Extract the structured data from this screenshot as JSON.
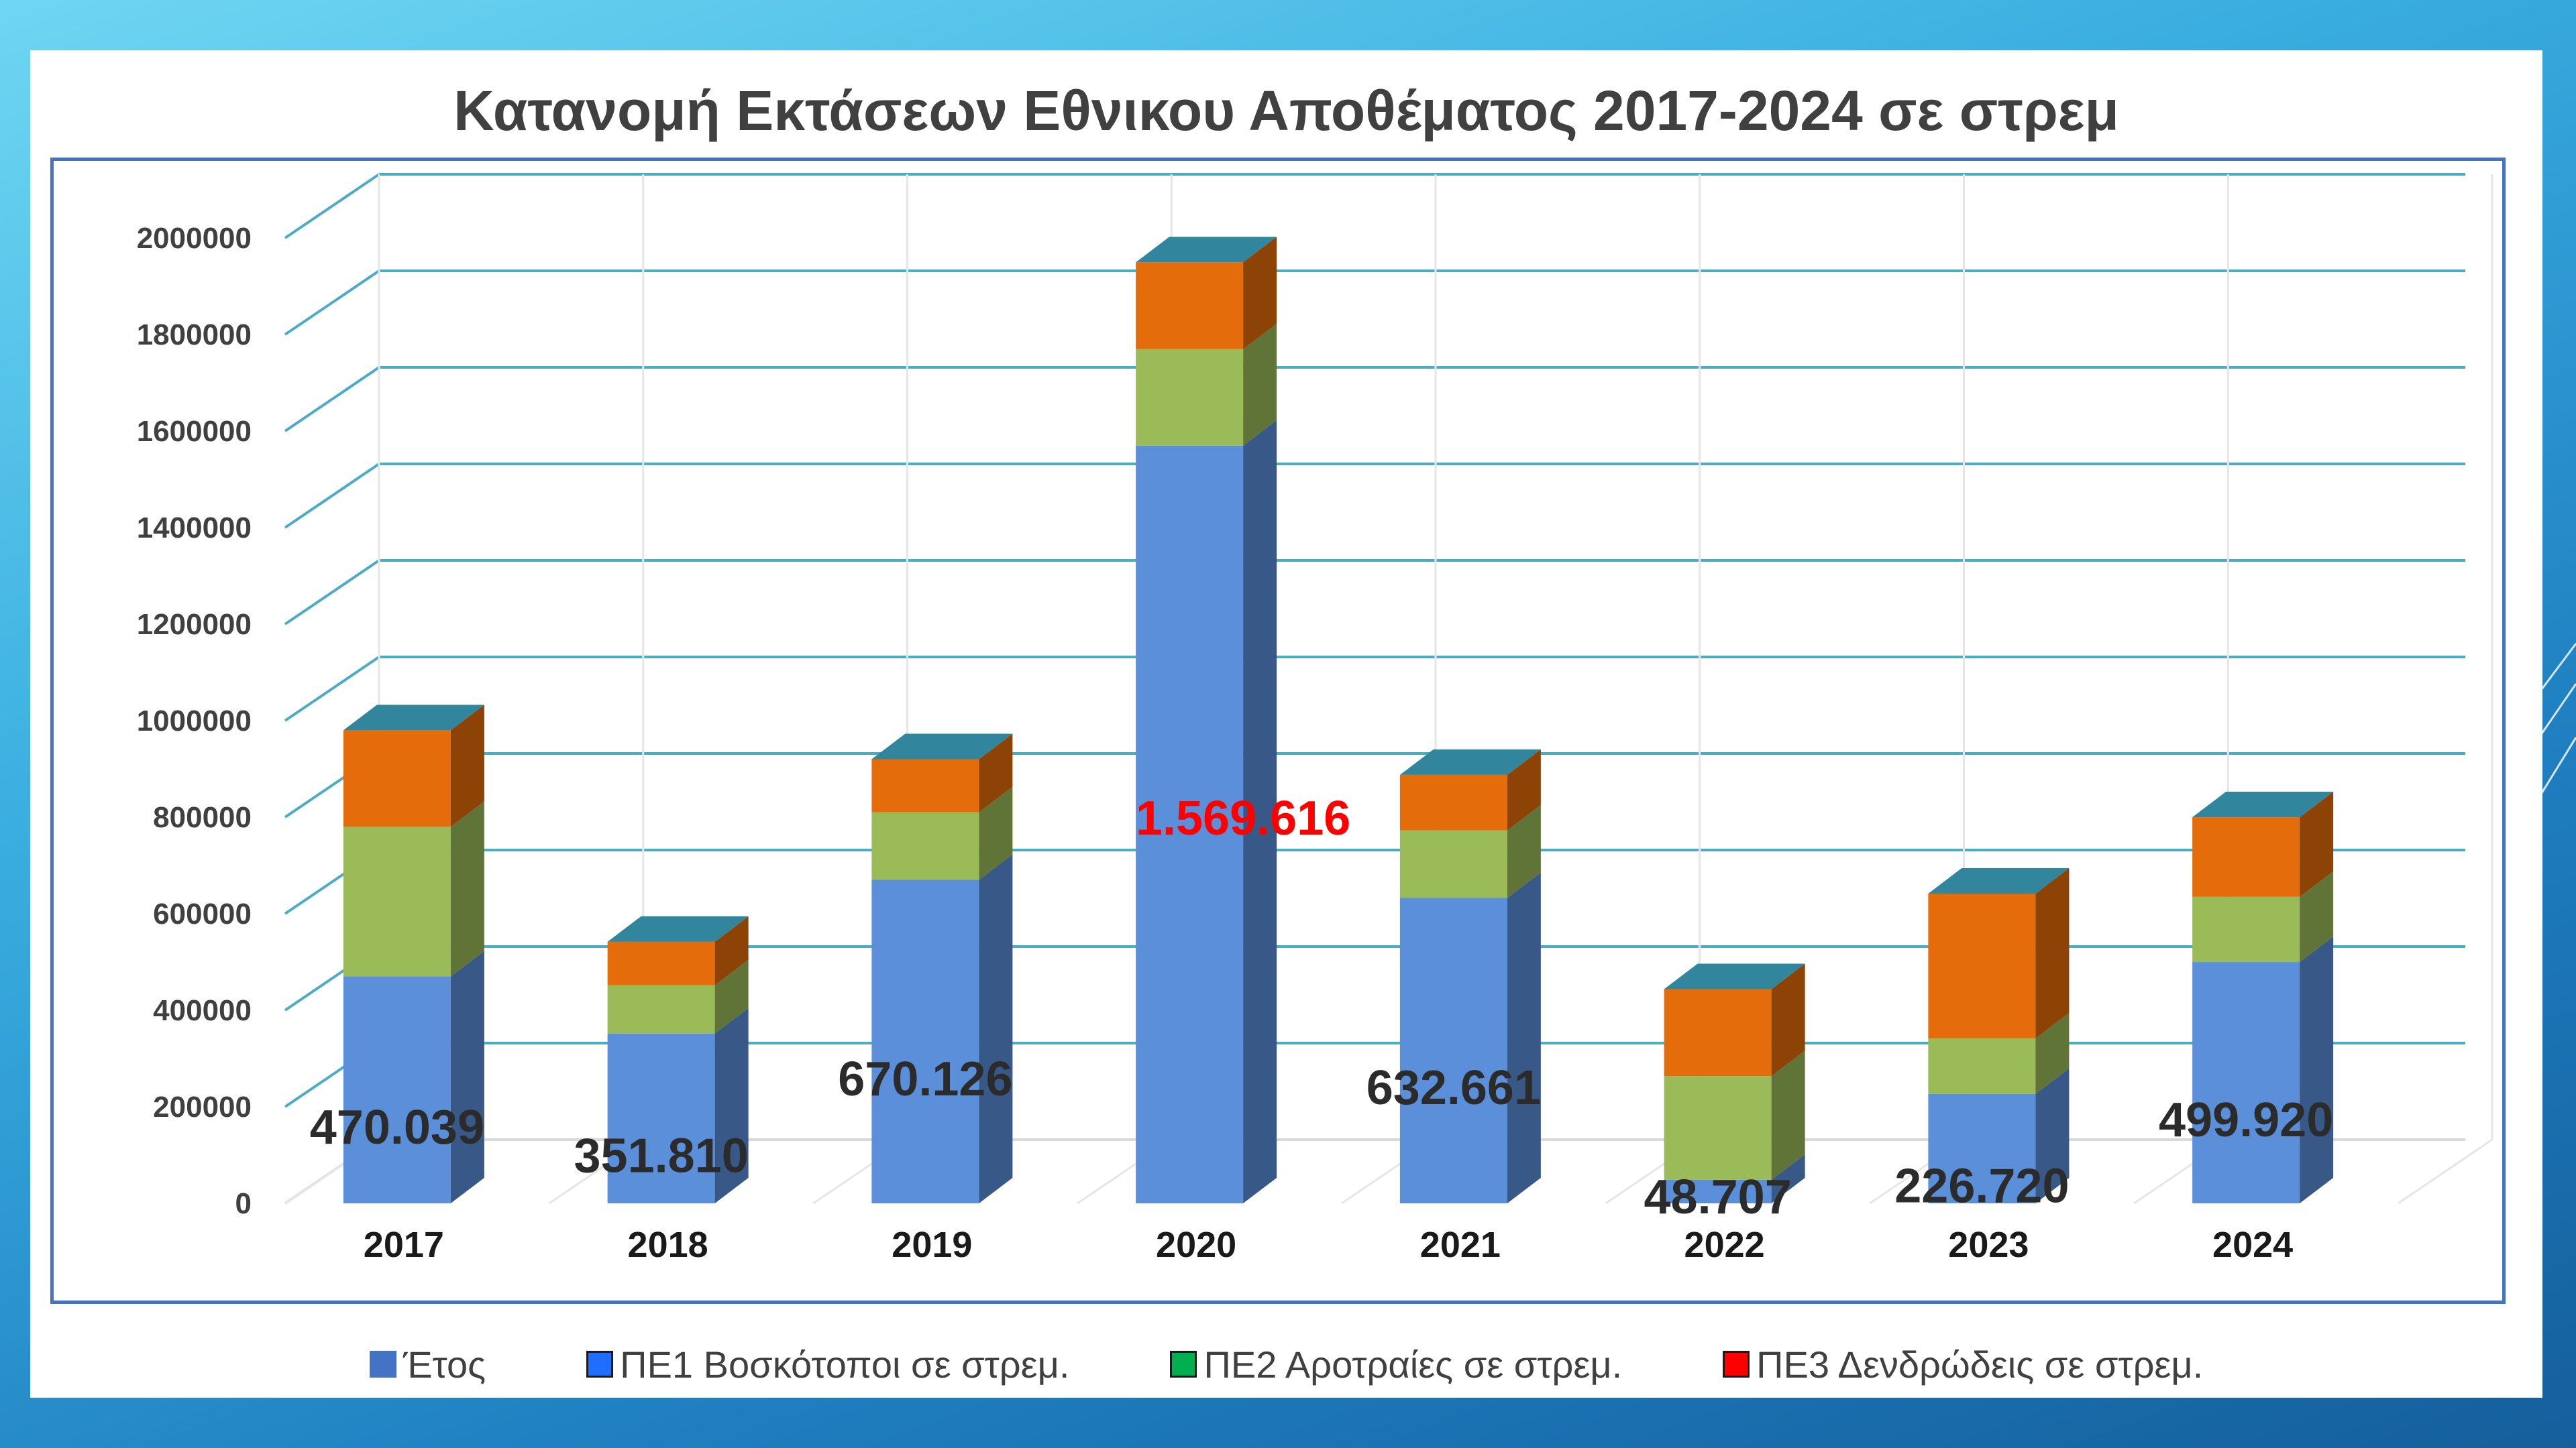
{
  "chart_data": {
    "type": "bar",
    "stacked": true,
    "style": "3d-column",
    "title": "Κατανομή Εκτάσεων Εθνικου Αποθέματος 2017-2024 σε στρεμ",
    "categories": [
      "2017",
      "2018",
      "2019",
      "2020",
      "2021",
      "2022",
      "2023",
      "2024"
    ],
    "series": [
      {
        "name": "ΠΕ1 Βοσκότοποι  σε στρεμ.",
        "color": "#5b8fd9",
        "values": [
          470039,
          351810,
          670126,
          1569616,
          632661,
          48707,
          226720,
          499920
        ]
      },
      {
        "name": "ΠΕ2 Αροτραίες  σε στρεμ.",
        "color": "#9bbb59",
        "values": [
          310000,
          100000,
          140000,
          200000,
          140000,
          215000,
          115000,
          135000
        ]
      },
      {
        "name": "ΠΕ3 Δενδρώδεις  σε  στρεμ.",
        "color": "#e46c0a",
        "values": [
          200000,
          90000,
          110000,
          180000,
          115000,
          180000,
          300000,
          165000
        ]
      }
    ],
    "data_labels": [
      "470.039",
      "351.810",
      "670.126",
      "1.569.616",
      "632.661",
      "48.707",
      "226.720",
      "499.920"
    ],
    "highlighted_label_index": 3,
    "highlight_color": "#ff0000",
    "ylim": [
      0,
      2000000
    ],
    "yticks": [
      0,
      200000,
      400000,
      600000,
      800000,
      1000000,
      1200000,
      1400000,
      1600000,
      1800000,
      2000000
    ],
    "ytick_labels": [
      "0",
      "200000",
      "400000",
      "600000",
      "800000",
      "1000000",
      "1200000",
      "1400000",
      "1600000",
      "1800000",
      "2000000"
    ],
    "grid": true,
    "grid_color": "#4bacc6",
    "top_face_color": "#31859c",
    "xlabel": "",
    "ylabel": "",
    "legend_position": "bottom",
    "legend": [
      {
        "label": "Έτος",
        "color": "#4472c4"
      },
      {
        "label": "ΠΕ1 Βοσκότοποι  σε στρεμ.",
        "color": "#1e6fff"
      },
      {
        "label": "ΠΕ2 Αροτραίες  σε στρεμ.",
        "color": "#00b050"
      },
      {
        "label": "ΠΕ3 Δενδρώδεις  σε  στρεμ.",
        "color": "#ff0000"
      }
    ]
  }
}
